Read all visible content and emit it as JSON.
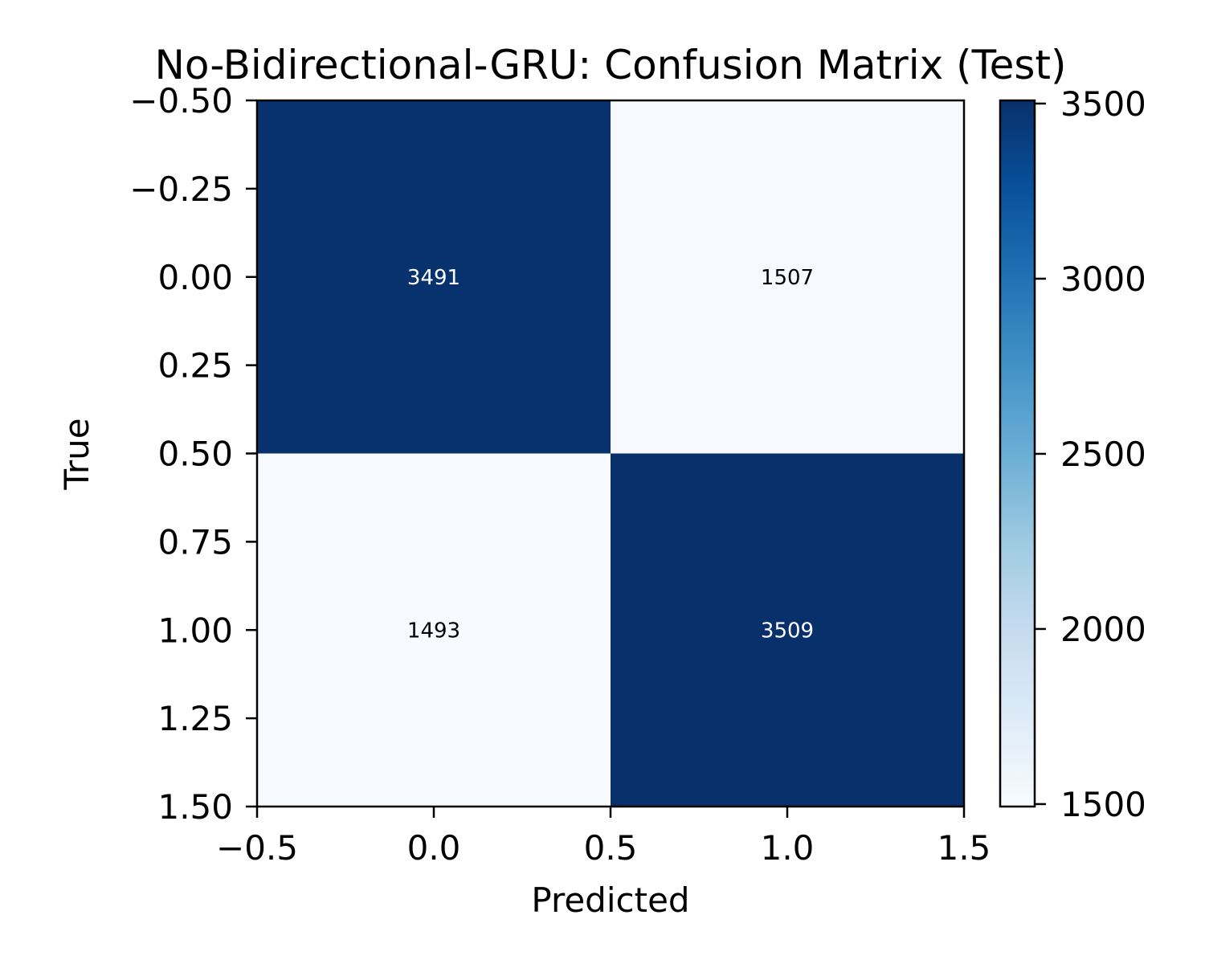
{
  "chart_data": {
    "type": "heatmap",
    "title": "No-Bidirectional-GRU: Confusion Matrix (Test)",
    "xlabel": "Predicted",
    "ylabel": "True",
    "matrix": [
      [
        3491,
        1507
      ],
      [
        1493,
        3509
      ]
    ],
    "xlim": [
      -0.5,
      1.5
    ],
    "ylim": [
      -0.5,
      1.5
    ],
    "y_inverted": true,
    "x_ticks": [
      "−0.5",
      "0.0",
      "0.5",
      "1.0",
      "1.5"
    ],
    "y_ticks": [
      "−0.50",
      "−0.25",
      "0.00",
      "0.25",
      "0.50",
      "0.75",
      "1.00",
      "1.25",
      "1.50"
    ],
    "colorbar": {
      "colormap": "Blues",
      "range": [
        1493,
        3509
      ],
      "ticks": [
        "1500",
        "2000",
        "2500",
        "3000",
        "3500"
      ],
      "tick_values": [
        1500,
        2000,
        2500,
        3000,
        3500
      ]
    },
    "dark_color": "#08306b",
    "light_color": "#f7fbff",
    "grid": false,
    "legend": "none"
  }
}
